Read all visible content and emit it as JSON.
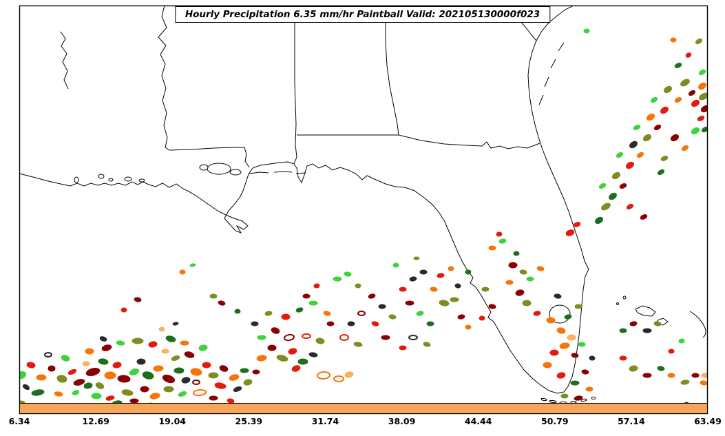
{
  "title": "Hourly Precipitation 6.35 mm/hr Paintball Valid: 202105130000f023",
  "colorbar": {
    "color": "#f7a558",
    "ticks": [
      "6.34",
      "12.69",
      "19.04",
      "25.39",
      "31.74",
      "38.09",
      "44.44",
      "50.79",
      "57.14",
      "63.49"
    ]
  },
  "map": {
    "region": "Southeast United States and Gulf of Mexico",
    "boundary_color": "#000000",
    "background_color": "#ffffff"
  },
  "palette": [
    "#8b0000",
    "#e31a0c",
    "#f97306",
    "#fdae61",
    "#1e6e1e",
    "#3fd23f",
    "#7d8d21",
    "#2a2a2a",
    "#a2c523"
  ],
  "blobs": [
    [
      30,
      545,
      8,
      5,
      -20,
      5,
      1
    ],
    [
      45,
      530,
      6,
      4,
      10,
      1,
      1
    ],
    [
      60,
      548,
      7,
      4,
      0,
      2,
      1
    ],
    [
      38,
      562,
      5,
      3,
      30,
      7,
      1
    ],
    [
      55,
      570,
      9,
      4,
      -10,
      4,
      1
    ],
    [
      75,
      535,
      5,
      4,
      0,
      0,
      1
    ],
    [
      90,
      550,
      7,
      5,
      15,
      6,
      1
    ],
    [
      105,
      540,
      6,
      3,
      -25,
      1,
      1
    ],
    [
      70,
      515,
      5,
      3,
      0,
      7,
      0
    ],
    [
      95,
      520,
      6,
      4,
      20,
      5,
      1
    ],
    [
      115,
      555,
      8,
      4,
      -15,
      0,
      1
    ],
    [
      30,
      585,
      6,
      3,
      0,
      6,
      1
    ],
    [
      85,
      572,
      6,
      3,
      10,
      2,
      1
    ],
    [
      110,
      570,
      5,
      3,
      -20,
      5,
      1
    ],
    [
      125,
      528,
      5,
      3,
      0,
      3,
      1
    ],
    [
      135,
      540,
      10,
      5,
      -15,
      0,
      1
    ],
    [
      150,
      525,
      7,
      4,
      10,
      4,
      1
    ],
    [
      160,
      545,
      8,
      5,
      0,
      2,
      1
    ],
    [
      145,
      560,
      6,
      4,
      25,
      6,
      1
    ],
    [
      170,
      530,
      6,
      4,
      -10,
      1,
      1
    ],
    [
      180,
      550,
      9,
      5,
      5,
      0,
      1
    ],
    [
      195,
      540,
      7,
      4,
      -20,
      5,
      1
    ],
    [
      205,
      525,
      6,
      4,
      0,
      7,
      1
    ],
    [
      215,
      545,
      8,
      5,
      15,
      4,
      1
    ],
    [
      230,
      535,
      7,
      4,
      -5,
      2,
      1
    ],
    [
      140,
      575,
      7,
      4,
      0,
      5,
      1
    ],
    [
      160,
      578,
      6,
      3,
      -15,
      1,
      1
    ],
    [
      185,
      570,
      8,
      4,
      10,
      6,
      1
    ],
    [
      210,
      565,
      6,
      4,
      0,
      0,
      1
    ],
    [
      225,
      575,
      7,
      4,
      -10,
      2,
      1
    ],
    [
      245,
      550,
      9,
      5,
      20,
      0,
      1
    ],
    [
      260,
      538,
      7,
      4,
      0,
      4,
      1
    ],
    [
      270,
      552,
      6,
      4,
      -15,
      7,
      1
    ],
    [
      285,
      540,
      8,
      5,
      10,
      2,
      1
    ],
    [
      300,
      530,
      6,
      4,
      0,
      1,
      1
    ],
    [
      255,
      520,
      6,
      3,
      -20,
      6,
      1
    ],
    [
      240,
      510,
      5,
      3,
      0,
      3,
      1
    ],
    [
      275,
      515,
      7,
      4,
      15,
      0,
      1
    ],
    [
      295,
      505,
      6,
      4,
      -10,
      5,
      1
    ],
    [
      310,
      545,
      7,
      4,
      0,
      6,
      1
    ],
    [
      325,
      535,
      6,
      4,
      20,
      0,
      1
    ],
    [
      340,
      548,
      7,
      4,
      -15,
      2,
      1
    ],
    [
      355,
      538,
      6,
      3,
      0,
      4,
      1
    ],
    [
      320,
      560,
      8,
      4,
      10,
      1,
      1
    ],
    [
      345,
      565,
      6,
      3,
      -20,
      7,
      1
    ],
    [
      130,
      510,
      6,
      4,
      0,
      2,
      1
    ],
    [
      155,
      505,
      7,
      4,
      -15,
      0,
      1
    ],
    [
      175,
      498,
      6,
      3,
      10,
      5,
      1
    ],
    [
      200,
      495,
      8,
      4,
      0,
      6,
      1
    ],
    [
      222,
      500,
      6,
      4,
      -10,
      1,
      1
    ],
    [
      248,
      492,
      7,
      4,
      15,
      4,
      1
    ],
    [
      268,
      498,
      6,
      3,
      0,
      2,
      1
    ],
    [
      170,
      585,
      7,
      3,
      -10,
      4,
      1
    ],
    [
      195,
      582,
      6,
      3,
      0,
      0,
      1
    ],
    [
      220,
      588,
      5,
      3,
      15,
      5,
      1
    ],
    [
      290,
      570,
      9,
      4,
      -5,
      2,
      0
    ],
    [
      310,
      578,
      6,
      3,
      0,
      0,
      1
    ],
    [
      335,
      582,
      5,
      3,
      10,
      1,
      1
    ],
    [
      360,
      555,
      6,
      4,
      -15,
      6,
      1
    ],
    [
      372,
      540,
      5,
      3,
      0,
      0,
      1
    ],
    [
      150,
      492,
      5,
      3,
      20,
      7,
      1
    ],
    [
      128,
      560,
      6,
      4,
      -10,
      4,
      1
    ],
    [
      245,
      565,
      7,
      4,
      0,
      6,
      1
    ],
    [
      265,
      572,
      6,
      3,
      -20,
      5,
      1
    ],
    [
      285,
      555,
      5,
      3,
      0,
      0,
      0
    ],
    [
      380,
      520,
      7,
      4,
      -10,
      2,
      1
    ],
    [
      395,
      505,
      6,
      4,
      0,
      0,
      1
    ],
    [
      410,
      520,
      8,
      4,
      15,
      6,
      1
    ],
    [
      425,
      510,
      6,
      4,
      -15,
      1,
      1
    ],
    [
      440,
      525,
      7,
      4,
      0,
      4,
      1
    ],
    [
      455,
      515,
      6,
      3,
      10,
      7,
      1
    ],
    [
      470,
      545,
      9,
      5,
      -5,
      2,
      0
    ],
    [
      492,
      550,
      7,
      4,
      0,
      2,
      0
    ],
    [
      507,
      544,
      6,
      4,
      -15,
      3,
      1
    ],
    [
      380,
      490,
      6,
      3,
      0,
      5,
      1
    ],
    [
      400,
      480,
      6,
      4,
      20,
      0,
      1
    ],
    [
      420,
      490,
      7,
      4,
      -10,
      0,
      0
    ],
    [
      445,
      488,
      6,
      3,
      0,
      1,
      0
    ],
    [
      465,
      495,
      6,
      4,
      10,
      6,
      1
    ],
    [
      415,
      460,
      6,
      4,
      0,
      1,
      1
    ],
    [
      435,
      450,
      5,
      3,
      -15,
      4,
      1
    ],
    [
      455,
      440,
      6,
      3,
      0,
      5,
      1
    ],
    [
      475,
      455,
      5,
      3,
      15,
      2,
      1
    ],
    [
      370,
      470,
      5,
      3,
      0,
      7,
      1
    ],
    [
      390,
      455,
      5,
      3,
      -10,
      6,
      1
    ],
    [
      500,
      490,
      6,
      4,
      0,
      1,
      0
    ],
    [
      520,
      500,
      6,
      3,
      10,
      6,
      1
    ],
    [
      480,
      470,
      5,
      3,
      0,
      0,
      1
    ],
    [
      430,
      535,
      6,
      4,
      -20,
      1,
      1
    ],
    [
      510,
      470,
      5,
      3,
      0,
      7,
      1
    ],
    [
      180,
      450,
      4,
      3,
      0,
      1,
      1
    ],
    [
      200,
      435,
      5,
      3,
      10,
      0,
      1
    ],
    [
      265,
      395,
      4,
      3,
      0,
      2,
      1
    ],
    [
      280,
      385,
      4,
      2,
      -10,
      5,
      1
    ],
    [
      310,
      430,
      5,
      3,
      0,
      6,
      1
    ],
    [
      322,
      440,
      5,
      3,
      15,
      0,
      1
    ],
    [
      345,
      452,
      4,
      3,
      0,
      4,
      1
    ],
    [
      445,
      430,
      5,
      3,
      0,
      0,
      1
    ],
    [
      460,
      415,
      4,
      3,
      -10,
      1,
      1
    ],
    [
      490,
      405,
      6,
      3,
      0,
      5,
      1
    ],
    [
      505,
      398,
      5,
      3,
      10,
      5,
      1
    ],
    [
      520,
      415,
      4,
      3,
      0,
      6,
      1
    ],
    [
      540,
      430,
      5,
      3,
      -15,
      0,
      1
    ],
    [
      555,
      445,
      5,
      3,
      0,
      7,
      1
    ],
    [
      570,
      460,
      5,
      3,
      10,
      6,
      1
    ],
    [
      235,
      478,
      4,
      3,
      0,
      3,
      1
    ],
    [
      255,
      470,
      4,
      2,
      -10,
      7,
      1
    ],
    [
      525,
      455,
      5,
      3,
      0,
      0,
      0
    ],
    [
      545,
      470,
      5,
      3,
      15,
      1,
      1
    ],
    [
      560,
      490,
      6,
      3,
      0,
      0,
      1
    ],
    [
      585,
      420,
      5,
      3,
      0,
      1,
      1
    ],
    [
      600,
      405,
      5,
      3,
      -10,
      7,
      1
    ],
    [
      615,
      395,
      5,
      3,
      0,
      7,
      1
    ],
    [
      630,
      420,
      5,
      3,
      10,
      2,
      1
    ],
    [
      595,
      440,
      6,
      3,
      0,
      0,
      1
    ],
    [
      610,
      455,
      5,
      3,
      -15,
      5,
      1
    ],
    [
      625,
      470,
      5,
      3,
      0,
      4,
      1
    ],
    [
      645,
      440,
      7,
      4,
      10,
      6,
      1
    ],
    [
      660,
      435,
      6,
      3,
      0,
      6,
      1
    ],
    [
      640,
      400,
      5,
      3,
      -10,
      1,
      1
    ],
    [
      655,
      390,
      4,
      3,
      0,
      2,
      1
    ],
    [
      600,
      490,
      6,
      3,
      0,
      7,
      0
    ],
    [
      620,
      500,
      5,
      3,
      15,
      6,
      1
    ],
    [
      585,
      505,
      5,
      3,
      0,
      1,
      1
    ],
    [
      670,
      460,
      5,
      3,
      -10,
      0,
      1
    ],
    [
      680,
      475,
      4,
      3,
      0,
      2,
      1
    ],
    [
      575,
      385,
      4,
      3,
      0,
      5,
      1
    ],
    [
      665,
      415,
      4,
      3,
      10,
      7,
      1
    ],
    [
      605,
      375,
      4,
      2,
      0,
      6,
      1
    ],
    [
      680,
      395,
      4,
      3,
      -10,
      4,
      1
    ],
    [
      715,
      360,
      5,
      3,
      0,
      2,
      1
    ],
    [
      730,
      350,
      5,
      3,
      -10,
      5,
      1
    ],
    [
      745,
      385,
      6,
      4,
      0,
      0,
      1
    ],
    [
      760,
      395,
      5,
      3,
      10,
      6,
      1
    ],
    [
      740,
      410,
      5,
      3,
      0,
      2,
      1
    ],
    [
      755,
      425,
      6,
      4,
      -15,
      0,
      1
    ],
    [
      770,
      405,
      5,
      3,
      0,
      5,
      1
    ],
    [
      785,
      390,
      5,
      3,
      10,
      2,
      1
    ],
    [
      765,
      440,
      6,
      4,
      0,
      6,
      1
    ],
    [
      780,
      455,
      5,
      3,
      -10,
      1,
      1
    ],
    [
      800,
      465,
      6,
      4,
      0,
      2,
      1
    ],
    [
      815,
      480,
      6,
      4,
      15,
      2,
      1
    ],
    [
      830,
      490,
      6,
      4,
      0,
      3,
      1
    ],
    [
      820,
      502,
      7,
      4,
      -10,
      2,
      1
    ],
    [
      805,
      512,
      6,
      4,
      0,
      1,
      1
    ],
    [
      835,
      516,
      5,
      3,
      10,
      0,
      1
    ],
    [
      845,
      500,
      5,
      3,
      0,
      5,
      1
    ],
    [
      825,
      460,
      5,
      3,
      -10,
      4,
      1
    ],
    [
      840,
      445,
      5,
      3,
      0,
      6,
      1
    ],
    [
      810,
      430,
      5,
      3,
      10,
      7,
      1
    ],
    [
      795,
      530,
      6,
      4,
      0,
      2,
      1
    ],
    [
      815,
      545,
      6,
      4,
      -15,
      1,
      1
    ],
    [
      835,
      556,
      6,
      3,
      0,
      4,
      1
    ],
    [
      850,
      540,
      5,
      3,
      10,
      0,
      1
    ],
    [
      856,
      565,
      5,
      3,
      0,
      2,
      1
    ],
    [
      840,
      578,
      6,
      3,
      -10,
      0,
      1
    ],
    [
      820,
      575,
      5,
      3,
      0,
      6,
      1
    ],
    [
      860,
      520,
      4,
      3,
      10,
      7,
      1
    ],
    [
      750,
      368,
      4,
      3,
      0,
      4,
      1
    ],
    [
      725,
      340,
      4,
      3,
      -10,
      1,
      1
    ],
    [
      705,
      420,
      5,
      3,
      0,
      6,
      1
    ],
    [
      715,
      445,
      5,
      3,
      10,
      0,
      1
    ],
    [
      700,
      462,
      4,
      3,
      0,
      1,
      1
    ],
    [
      828,
      338,
      6,
      4,
      -20,
      1,
      1
    ],
    [
      838,
      326,
      5,
      3,
      -20,
      1,
      1
    ],
    [
      870,
      320,
      6,
      4,
      -30,
      4,
      1
    ],
    [
      880,
      300,
      7,
      4,
      -30,
      6,
      1
    ],
    [
      890,
      285,
      6,
      4,
      -35,
      4,
      1
    ],
    [
      875,
      270,
      5,
      3,
      -30,
      5,
      1
    ],
    [
      895,
      255,
      6,
      4,
      -30,
      6,
      1
    ],
    [
      905,
      270,
      5,
      3,
      -25,
      0,
      1
    ],
    [
      915,
      240,
      6,
      4,
      -30,
      1,
      1
    ],
    [
      900,
      225,
      5,
      3,
      -30,
      5,
      1
    ],
    [
      920,
      210,
      6,
      4,
      -35,
      7,
      1
    ],
    [
      930,
      225,
      5,
      3,
      -30,
      2,
      1
    ],
    [
      940,
      200,
      6,
      4,
      -30,
      6,
      1
    ],
    [
      925,
      185,
      5,
      3,
      -25,
      5,
      1
    ],
    [
      945,
      170,
      6,
      4,
      -30,
      2,
      1
    ],
    [
      955,
      185,
      5,
      3,
      -30,
      0,
      1
    ],
    [
      965,
      160,
      6,
      4,
      -35,
      1,
      1
    ],
    [
      950,
      145,
      5,
      3,
      -30,
      5,
      1
    ],
    [
      970,
      130,
      6,
      4,
      -30,
      6,
      1
    ],
    [
      985,
      145,
      5,
      3,
      -25,
      2,
      1
    ],
    [
      995,
      120,
      7,
      4,
      -30,
      6,
      1
    ],
    [
      1005,
      135,
      5,
      3,
      -30,
      0,
      1
    ],
    [
      1010,
      150,
      6,
      4,
      -30,
      1,
      1
    ],
    [
      1020,
      125,
      6,
      4,
      -35,
      2,
      1
    ],
    [
      1022,
      140,
      7,
      4,
      -30,
      6,
      1
    ],
    [
      1024,
      158,
      6,
      4,
      -30,
      0,
      1
    ],
    [
      1018,
      172,
      5,
      3,
      -25,
      1,
      1
    ],
    [
      1024,
      188,
      5,
      3,
      -30,
      4,
      1
    ],
    [
      980,
      200,
      6,
      4,
      -30,
      0,
      1
    ],
    [
      995,
      215,
      5,
      3,
      -30,
      2,
      1
    ],
    [
      965,
      230,
      5,
      3,
      -25,
      6,
      1
    ],
    [
      1010,
      190,
      6,
      4,
      -30,
      5,
      1
    ],
    [
      915,
      300,
      5,
      3,
      -30,
      1,
      1
    ],
    [
      935,
      315,
      5,
      3,
      -25,
      0,
      1
    ],
    [
      960,
      250,
      5,
      3,
      -30,
      4,
      1
    ],
    [
      1020,
      105,
      5,
      3,
      -30,
      5,
      1
    ],
    [
      985,
      95,
      5,
      3,
      -25,
      4,
      1
    ],
    [
      1000,
      80,
      4,
      3,
      -30,
      1,
      1
    ],
    [
      1015,
      60,
      5,
      3,
      -30,
      6,
      1
    ],
    [
      978,
      58,
      4,
      3,
      0,
      2,
      1
    ],
    [
      852,
      45,
      4,
      3,
      0,
      5,
      1
    ],
    [
      905,
      480,
      5,
      3,
      0,
      4,
      1
    ],
    [
      920,
      470,
      5,
      3,
      -10,
      0,
      1
    ],
    [
      940,
      480,
      6,
      3,
      0,
      7,
      1
    ],
    [
      955,
      470,
      5,
      3,
      10,
      6,
      1
    ],
    [
      905,
      520,
      5,
      3,
      0,
      1,
      1
    ],
    [
      920,
      535,
      6,
      4,
      -10,
      6,
      1
    ],
    [
      940,
      545,
      6,
      3,
      0,
      0,
      1
    ],
    [
      960,
      535,
      5,
      3,
      10,
      4,
      1
    ],
    [
      975,
      545,
      5,
      3,
      0,
      2,
      1
    ],
    [
      995,
      555,
      6,
      3,
      -10,
      6,
      1
    ],
    [
      1010,
      545,
      5,
      3,
      0,
      0,
      1
    ],
    [
      1022,
      556,
      5,
      3,
      10,
      2,
      1
    ],
    [
      1024,
      545,
      5,
      3,
      0,
      3,
      1
    ],
    [
      975,
      510,
      4,
      3,
      0,
      1,
      1
    ],
    [
      990,
      495,
      4,
      3,
      -10,
      5,
      1
    ]
  ],
  "chart_data": {
    "type": "paintball-map",
    "title": "Hourly Precipitation 6.35 mm/hr Paintball Valid: 202105130000f023",
    "threshold_mm_per_hr": 6.35,
    "valid": "202105130000f023",
    "colorbar_tick_values": [
      6.34,
      12.69,
      19.04,
      25.39,
      31.74,
      38.09,
      44.44,
      50.79,
      57.14,
      63.49
    ],
    "legend_position": "bottom"
  }
}
